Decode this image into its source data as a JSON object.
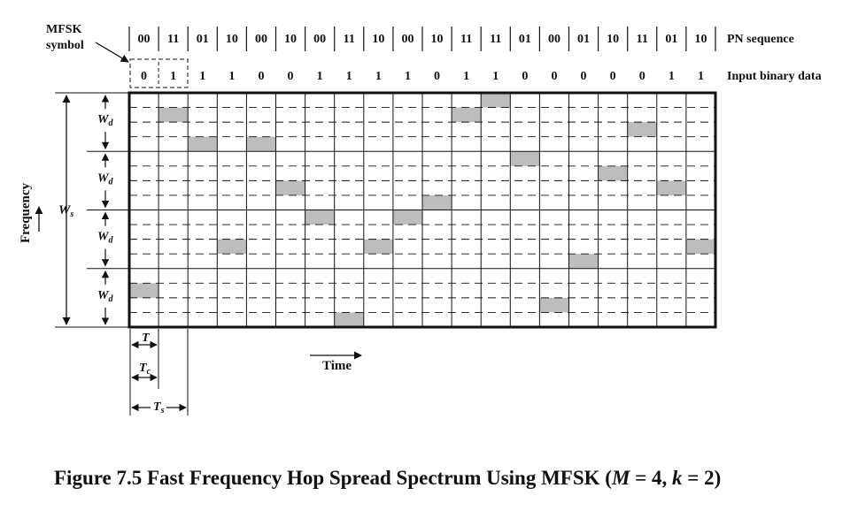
{
  "labels": {
    "mfsk_symbol_line1": "MFSK",
    "mfsk_symbol_line2": "symbol",
    "pn_sequence": "PN sequence",
    "input_binary_data": "Input binary data",
    "frequency": "Frequency",
    "time": "Time",
    "wd": "W",
    "wd_sub": "d",
    "ws": "W",
    "ws_sub": "s",
    "t": "T",
    "tc": "T",
    "tc_sub": "c",
    "ts": "T",
    "ts_sub": "s"
  },
  "caption": {
    "prefix": "Figure 7.5  Fast Frequency Hop Spread Spectrum Using MFSK (",
    "m_var": "M",
    "m_eq": " = 4, ",
    "k_var": "k",
    "k_eq": " = 2)"
  },
  "pn_sequence": [
    "00",
    "11",
    "01",
    "10",
    "00",
    "10",
    "00",
    "11",
    "10",
    "00",
    "10",
    "11",
    "11",
    "01",
    "00",
    "01",
    "10",
    "11",
    "01",
    "10"
  ],
  "input_binary_data": [
    "0",
    "1",
    "1",
    "1",
    "0",
    "0",
    "1",
    "1",
    "1",
    "1",
    "0",
    "1",
    "1",
    "0",
    "0",
    "0",
    "0",
    "0",
    "1",
    "1"
  ],
  "occupied_slots": [
    2,
    14,
    12,
    5,
    12,
    9,
    7,
    0,
    5,
    7,
    8,
    14,
    15,
    11,
    1,
    4,
    10,
    13,
    9,
    5
  ]
}
